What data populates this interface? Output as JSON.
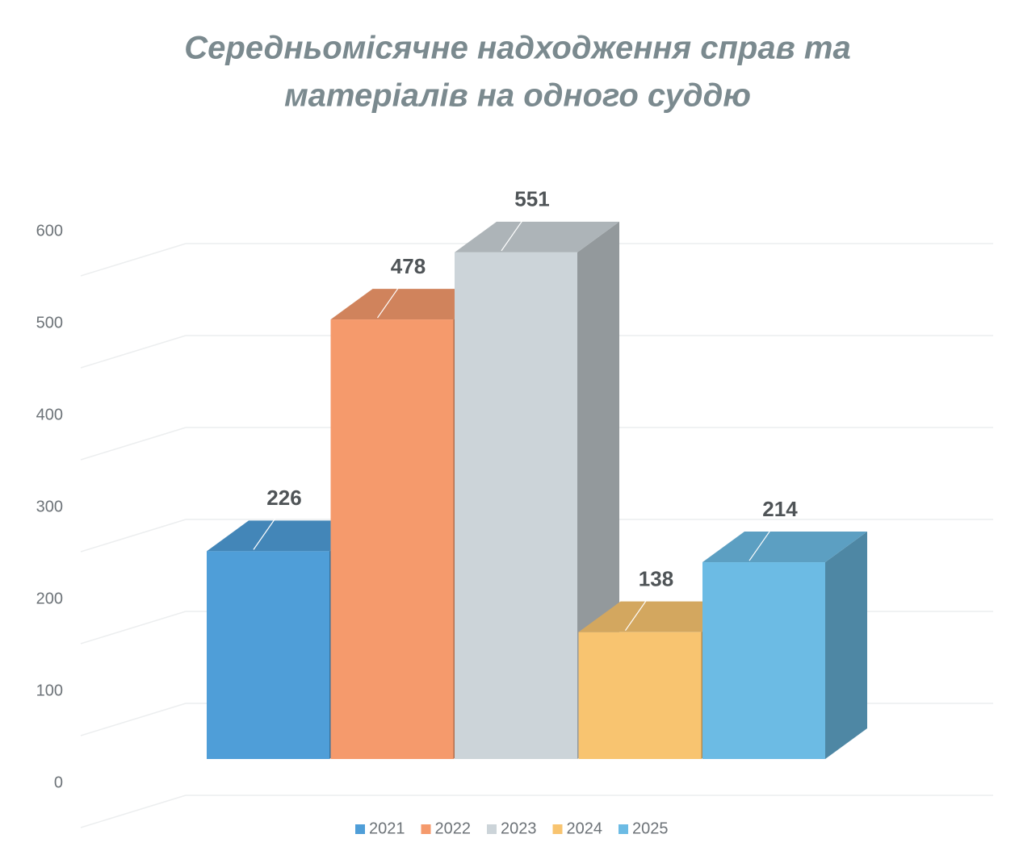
{
  "chart_data": {
    "type": "bar3d",
    "title": [
      "Середньомісячне надходження справ та",
      "матеріалів на одного суддю"
    ],
    "series": [
      {
        "name": "2021",
        "color": "#4f9ed8",
        "values": [
          226
        ]
      },
      {
        "name": "2022",
        "color": "#f59a6c",
        "values": [
          478
        ]
      },
      {
        "name": "2023",
        "color": "#ccd4d9",
        "values": [
          551
        ]
      },
      {
        "name": "2024",
        "color": "#f8c470",
        "values": [
          138
        ]
      },
      {
        "name": "2025",
        "color": "#6cbbe4",
        "values": [
          214
        ]
      }
    ],
    "ylim": [
      0,
      600
    ],
    "yticks": [
      0,
      100,
      200,
      300,
      400,
      500,
      600
    ],
    "grid": true,
    "legend": "bottom"
  }
}
